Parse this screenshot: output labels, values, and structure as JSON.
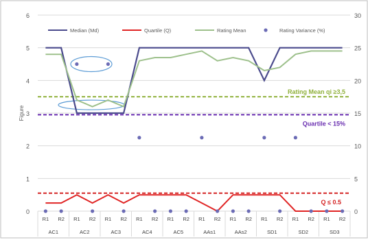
{
  "chart_data": {
    "type": "line",
    "ylabel": "Figure",
    "y_left": {
      "min": 0,
      "max": 6,
      "ticks": [
        0,
        1,
        2,
        3,
        4,
        5,
        6
      ]
    },
    "y_right": {
      "min": 0,
      "max": 30,
      "ticks": [
        0,
        5,
        10,
        15,
        20,
        25,
        30
      ]
    },
    "groups": [
      "AC1",
      "AC2",
      "AC3",
      "AC4",
      "AC5",
      "AAs1",
      "AAs2",
      "SD1",
      "SD2",
      "SD3"
    ],
    "rounds": [
      "R1",
      "R2"
    ],
    "x": [
      "R1",
      "R2",
      "R1",
      "R2",
      "R1",
      "R2",
      "R1",
      "R2",
      "R1",
      "R2",
      "R1",
      "R2",
      "R1",
      "R2",
      "R1",
      "R2",
      "R1",
      "R2",
      "R1",
      "R2"
    ],
    "legend_position": "top",
    "series": [
      {
        "name": "Median (Md)",
        "axis": "left",
        "color": "#4a4a8c",
        "values": [
          5,
          5,
          3,
          3,
          3,
          3,
          5,
          5,
          5,
          5,
          5,
          5,
          5,
          5,
          4,
          5,
          5,
          5,
          5,
          5
        ]
      },
      {
        "name": "Quartile (Q)",
        "axis": "left",
        "color": "#e02424",
        "values": [
          0.25,
          0.25,
          0.5,
          0.25,
          0.5,
          0.25,
          0.5,
          0.5,
          0.5,
          0.5,
          0.25,
          0,
          0.5,
          0.5,
          0.5,
          0.5,
          0,
          0,
          0,
          0
        ]
      },
      {
        "name": "Rating Mean",
        "axis": "left",
        "color": "#9dc08b",
        "values": [
          4.8,
          4.8,
          3.4,
          3.2,
          3.4,
          3.2,
          4.6,
          4.7,
          4.7,
          4.8,
          4.9,
          4.6,
          4.7,
          4.6,
          4.3,
          4.4,
          4.8,
          4.9,
          4.9,
          4.9
        ]
      },
      {
        "name": "Rating Variance (%)",
        "axis": "right",
        "color": "#6b6bb5",
        "marker": "dot",
        "values": [
          0,
          0,
          22.5,
          0,
          22.5,
          0,
          11.25,
          0,
          0,
          0,
          11.25,
          0,
          0,
          0,
          11.25,
          0,
          11.25,
          0,
          0,
          0
        ]
      }
    ],
    "thresholds": [
      {
        "label": "Rating Mean qi ≥3,5",
        "value": 3.5,
        "color": "#8fb03a"
      },
      {
        "label": "Quartile < 15%",
        "value": 2.95,
        "color": "#6a2fb0"
      },
      {
        "label": "Q ≤ 0.5",
        "value": 0.55,
        "color": "#d42020"
      }
    ]
  }
}
